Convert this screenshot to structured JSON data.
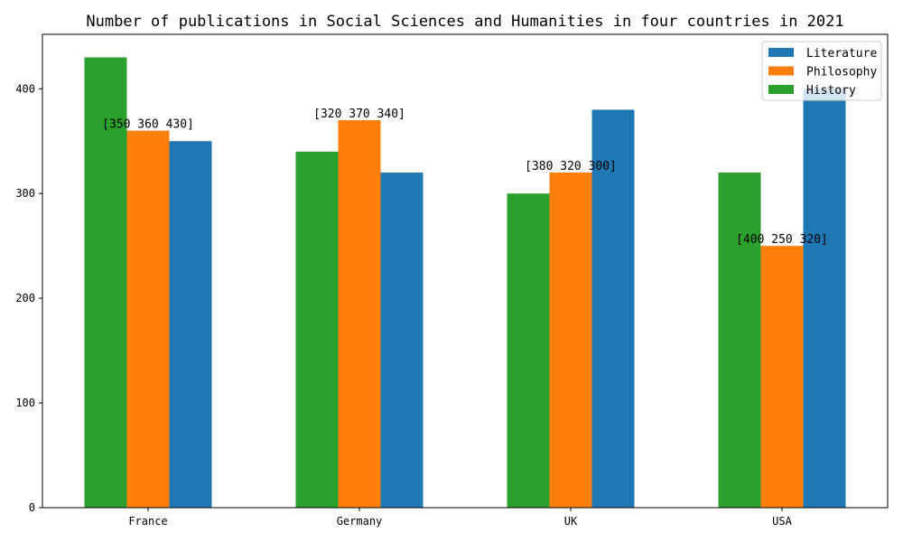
{
  "chart_data": {
    "type": "bar",
    "title": "Number of publications in Social Sciences and Humanities in four countries in 2021",
    "xlabel": "",
    "ylabel": "",
    "categories": [
      "France",
      "Germany",
      "UK",
      "USA"
    ],
    "series": [
      {
        "name": "History",
        "values": [
          430,
          340,
          300,
          320
        ],
        "color": "#2ca02c"
      },
      {
        "name": "Philosophy",
        "values": [
          360,
          370,
          320,
          250
        ],
        "color": "#ff7f0e"
      },
      {
        "name": "Literature",
        "values": [
          350,
          320,
          380,
          400
        ],
        "color": "#1f77b4"
      }
    ],
    "legend_order": [
      "Literature",
      "Philosophy",
      "History"
    ],
    "data_labels": [
      "[350 360 430]",
      "[320 370 340]",
      "[380 320 300]",
      "[400 250 320]"
    ],
    "y_ticks": [
      0,
      100,
      200,
      300,
      400
    ],
    "ylim": [
      0,
      452
    ],
    "grid": false,
    "legend_position": "top-right"
  }
}
